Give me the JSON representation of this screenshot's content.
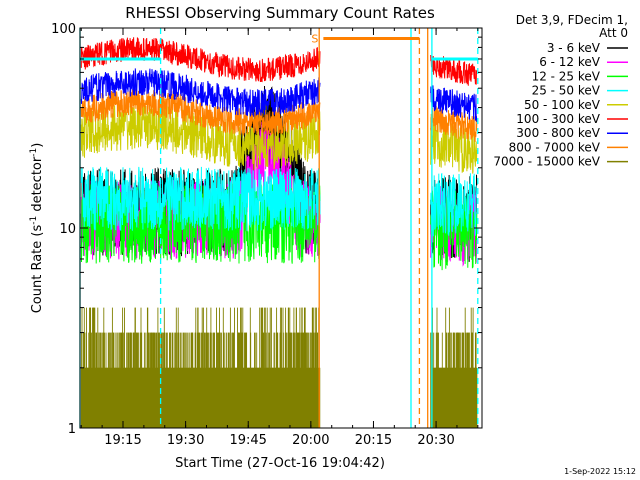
{
  "chart_data": {
    "type": "line",
    "title": "RHESSI Observing Summary Count Rates",
    "ylabel": "Count Rate (s⁻¹ detector⁻¹)",
    "ylabel_parts": [
      "Count Rate (s",
      "-1",
      " detector",
      "-1",
      ")"
    ],
    "xlabel": "Start Time (27-Oct-16 19:04:42)",
    "x_ticks": [
      "19:15",
      "19:30",
      "19:45",
      "20:00",
      "20:15",
      "20:30"
    ],
    "y_ticks": [
      "1",
      "10",
      "100"
    ],
    "yscale": "log",
    "ylim": [
      1,
      100
    ],
    "xlim": [
      "19:04:42",
      "20:41:00"
    ],
    "legend_header": [
      "Det 3,9, FDecim 1,",
      "Att 0"
    ],
    "legend_placement": "right",
    "footer": "1-Sep-2022 15:12",
    "annotation_s": "S",
    "series": [
      {
        "name": "3 - 6 keV",
        "color": "#000000",
        "level": 12,
        "flare": {
          "start": "19:41",
          "peak": "19:49",
          "end": "19:59",
          "peak_value": 35
        }
      },
      {
        "name": "6 - 12 keV",
        "color": "#ff00ff",
        "level": 11,
        "flare": {
          "start": "19:43",
          "peak": "19:49",
          "end": "19:57",
          "peak_value": 24
        }
      },
      {
        "name": "12 - 25 keV",
        "color": "#00ff00",
        "level": 10.5
      },
      {
        "name": "25 - 50 keV",
        "color": "#00ffff",
        "level": 14
      },
      {
        "name": "50 - 100 keV",
        "color": "#cccc00",
        "level": 29
      },
      {
        "name": "100 - 300 keV",
        "color": "#ff0000",
        "level": 70
      },
      {
        "name": "300 - 800 keV",
        "color": "#0000ff",
        "level": 48
      },
      {
        "name": "800 - 7000 keV",
        "color": "#ff8000",
        "level": 38
      },
      {
        "name": "7000 - 15000 keV",
        "color": "#808000",
        "level": 2.3
      }
    ],
    "data_gaps": [
      [
        "20:03",
        "20:28"
      ]
    ],
    "markers": [
      {
        "kind": "solid",
        "color": "#00ffff",
        "time": "19:04:42"
      },
      {
        "kind": "dashed",
        "color": "#00ffff",
        "time": "19:24"
      },
      {
        "kind": "solid",
        "color": "#ff8000",
        "time": "20:02"
      },
      {
        "kind": "solid",
        "color": "#00ffff",
        "time": "20:24"
      },
      {
        "kind": "dashed",
        "color": "#ff8000",
        "time": "20:26"
      },
      {
        "kind": "solid",
        "color": "#ff8000",
        "time": "20:28"
      },
      {
        "kind": "solid",
        "color": "#00ffff",
        "time": "20:29"
      },
      {
        "kind": "dashed",
        "color": "#00ffff",
        "time": "20:40"
      }
    ],
    "saa_bar": {
      "color": "#ff8000",
      "from": "20:03",
      "to": "20:26",
      "value": 95
    },
    "night_bars": [
      {
        "color": "#00ffff",
        "from": "19:04:42",
        "to": "19:24",
        "value": 75
      },
      {
        "color": "#00ffff",
        "from": "20:29",
        "to": "20:40",
        "value": 75
      }
    ]
  }
}
